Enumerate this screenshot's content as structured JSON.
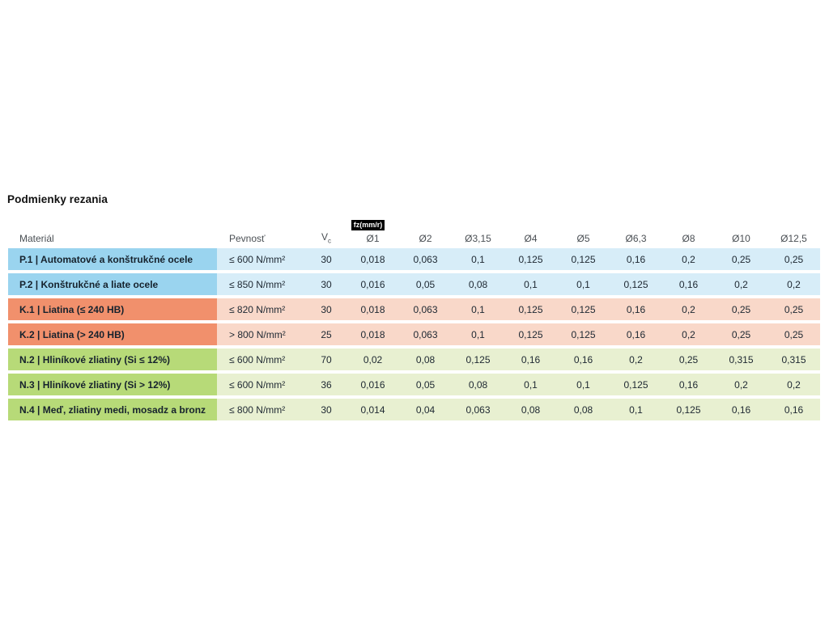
{
  "title": "Podmienky rezania",
  "colors": {
    "p_dark": "#9ad4ef",
    "p_light": "#d7edf8",
    "k_dark": "#f1906c",
    "k_light": "#f9d8c9",
    "n_dark": "#b7da78",
    "n_light": "#e8f0d1",
    "badge_bg": "#000000",
    "badge_text": "#ffffff",
    "header_text": "#4a4f54",
    "body_text": "#1d2731"
  },
  "table": {
    "headers": {
      "material": "Materiál",
      "pevnost": "Pevnosť",
      "vc_main": "V",
      "vc_sub": "c",
      "fz_badge": "fz(mm/r)",
      "diameters": [
        "Ø1",
        "Ø2",
        "Ø3,15",
        "Ø4",
        "Ø5",
        "Ø6,3",
        "Ø8",
        "Ø10",
        "Ø12,5"
      ]
    },
    "rows": [
      {
        "group": "P",
        "material": "P.1 | Automatové a konštrukčné ocele",
        "pevnost": "≤ 600 N/mm²",
        "vc": "30",
        "fz": [
          "0,018",
          "0,063",
          "0,1",
          "0,125",
          "0,125",
          "0,16",
          "0,2",
          "0,25",
          "0,25"
        ]
      },
      {
        "group": "P",
        "material": "P.2 | Konštrukčné a liate ocele",
        "pevnost": "≤ 850 N/mm²",
        "vc": "30",
        "fz": [
          "0,016",
          "0,05",
          "0,08",
          "0,1",
          "0,1",
          "0,125",
          "0,16",
          "0,2",
          "0,2"
        ]
      },
      {
        "group": "K",
        "material": "K.1 | Liatina (≤ 240 HB)",
        "pevnost": "≤ 820 N/mm²",
        "vc": "30",
        "fz": [
          "0,018",
          "0,063",
          "0,1",
          "0,125",
          "0,125",
          "0,16",
          "0,2",
          "0,25",
          "0,25"
        ]
      },
      {
        "group": "K",
        "material": "K.2 | Liatina (> 240 HB)",
        "pevnost": "> 800 N/mm²",
        "vc": "25",
        "fz": [
          "0,018",
          "0,063",
          "0,1",
          "0,125",
          "0,125",
          "0,16",
          "0,2",
          "0,25",
          "0,25"
        ]
      },
      {
        "group": "N",
        "material": "N.2 | Hliníkové zliatiny (Si ≤ 12%)",
        "pevnost": "≤ 600 N/mm²",
        "vc": "70",
        "fz": [
          "0,02",
          "0,08",
          "0,125",
          "0,16",
          "0,16",
          "0,2",
          "0,25",
          "0,315",
          "0,315"
        ]
      },
      {
        "group": "N",
        "material": "N.3 | Hliníkové zliatiny (Si > 12%)",
        "pevnost": "≤ 600 N/mm²",
        "vc": "36",
        "fz": [
          "0,016",
          "0,05",
          "0,08",
          "0,1",
          "0,1",
          "0,125",
          "0,16",
          "0,2",
          "0,2"
        ]
      },
      {
        "group": "N",
        "material": "N.4 | Meď, zliatiny medi, mosadz a bronz",
        "pevnost": "≤ 800 N/mm²",
        "vc": "30",
        "fz": [
          "0,014",
          "0,04",
          "0,063",
          "0,08",
          "0,08",
          "0,1",
          "0,125",
          "0,16",
          "0,16"
        ]
      }
    ]
  }
}
